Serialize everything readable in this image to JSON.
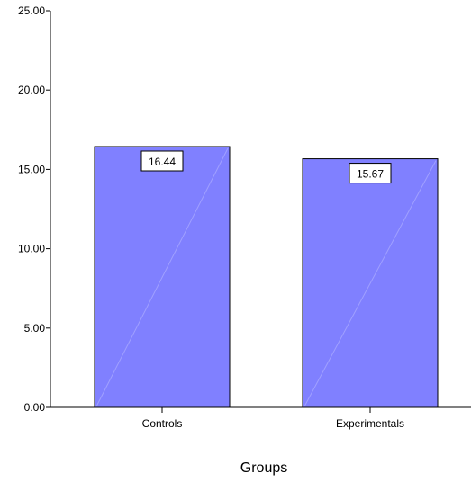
{
  "chart_data": {
    "type": "bar",
    "categories": [
      "Controls",
      "Experimentals"
    ],
    "values": [
      16.44,
      15.67
    ],
    "value_labels": [
      "16.44",
      "15.67"
    ],
    "title": "",
    "xlabel": "Groups",
    "ylabel": "",
    "ylim": [
      0,
      25
    ],
    "yticks": [
      0,
      5,
      10,
      15,
      20,
      25
    ],
    "ytick_labels": [
      "0.00",
      "5.00",
      "10.00",
      "15.00",
      "20.00",
      "25.00"
    ],
    "grid": false,
    "legend": "none",
    "bar_color": "#8080ff",
    "bar_edge_color": "#000000"
  }
}
